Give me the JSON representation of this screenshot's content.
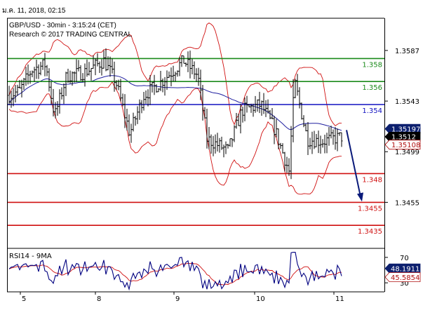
{
  "header": {
    "timestamp": "ม.ค. 11, 2018, 02:15",
    "instrument_line": "GBP/USD - 30min - 3:15:24 (CET)",
    "research_line": "Research © 2017 TRADING CENTRAL"
  },
  "colors": {
    "candles": "#000000",
    "bollinger": "#d01010",
    "moving_average": "#2020a0",
    "resistance": "#1a8a1a",
    "pivot": "#1010c0",
    "support": "#d01010",
    "arrow": "#0a1a7a",
    "price_box": "#0c1f6e",
    "band_box": "#b01010",
    "rsi_line": "#000080",
    "rsi_ma": "#d01010"
  },
  "chart_data": [
    {
      "type": "candlestick",
      "title": "GBP/USD - 30min",
      "x_tick_labels": [
        "5",
        "8",
        "9",
        "10",
        "11"
      ],
      "y_tick_labels": [
        "1.3587",
        "1.3543",
        "1.3499",
        "1.3455"
      ],
      "ylim": [
        1.3415,
        1.3615
      ],
      "grid": false,
      "legend": "none",
      "levels": [
        {
          "label": "1.358",
          "value": 1.358,
          "kind": "resistance"
        },
        {
          "label": "1.356",
          "value": 1.356,
          "kind": "resistance"
        },
        {
          "label": "1.354",
          "value": 1.354,
          "kind": "pivot"
        },
        {
          "label": "1.348",
          "value": 1.348,
          "kind": "support"
        },
        {
          "label": "1.3455",
          "value": 1.3455,
          "kind": "support"
        },
        {
          "label": "1.3435",
          "value": 1.3435,
          "kind": "support"
        }
      ],
      "price_tags": [
        {
          "label": "1.35197",
          "value": 1.35197,
          "kind": "upper-band"
        },
        {
          "label": "1.3512",
          "value": 1.3512,
          "kind": "last-price"
        },
        {
          "label": "1.35108",
          "value": 1.35108,
          "kind": "lower-band"
        }
      ],
      "projection": {
        "from": 1.3516,
        "to": 1.3455
      }
    },
    {
      "type": "line",
      "title": "RSI14 - 9MA",
      "y_tick_labels": [
        "70",
        "30"
      ],
      "ylim": [
        18,
        82
      ],
      "series": [
        {
          "name": "RSI14",
          "value_label": "48.1911",
          "value": 48.1911
        },
        {
          "name": "9MA",
          "value_label": "45.5854",
          "value": 45.5854
        }
      ]
    }
  ]
}
